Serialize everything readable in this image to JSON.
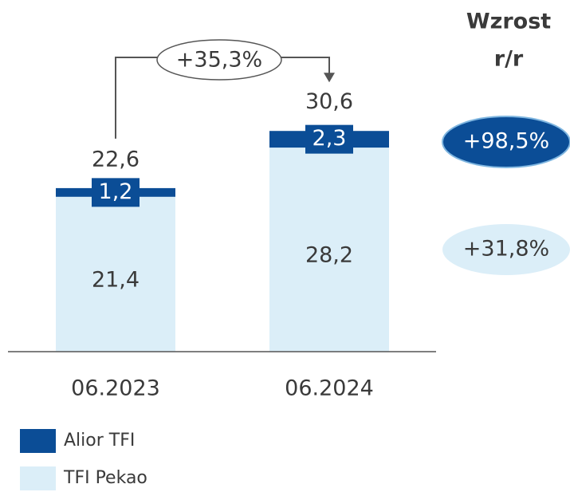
{
  "chart_data": {
    "type": "stacked_bar",
    "categories": [
      "06.2023",
      "06.2024"
    ],
    "series": [
      {
        "name": "TFI Pekao",
        "color": "#dbeef8",
        "values": [
          21.4,
          28.2
        ],
        "value_labels": [
          "21,4",
          "28,2"
        ],
        "growth": "+31,8%"
      },
      {
        "name": "Alior TFI",
        "color": "#0b4d96",
        "values": [
          1.2,
          2.3
        ],
        "value_labels": [
          "1,2",
          "2,3"
        ],
        "growth": "+98,5%"
      }
    ],
    "totals": [
      22.6,
      30.6
    ],
    "total_labels": [
      "22,6",
      "30,6"
    ],
    "change_label": "+35,3%",
    "growth_title": [
      "Wzrost",
      "r/r"
    ],
    "ylim": [
      0,
      40
    ]
  }
}
